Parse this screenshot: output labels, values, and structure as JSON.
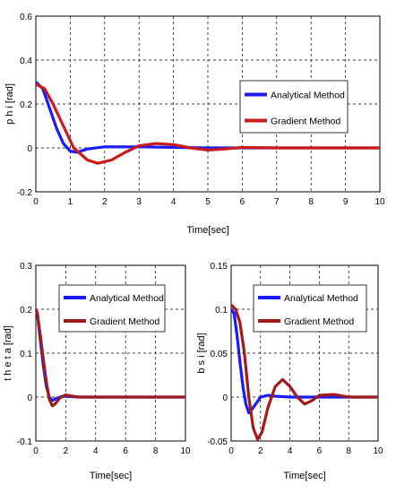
{
  "chart_data": [
    {
      "type": "line",
      "xlabel": "Time[sec]",
      "ylabel": "p h i [rad]",
      "xlim": [
        0,
        10
      ],
      "ylim": [
        -0.2,
        0.6
      ],
      "xticks": [
        "0",
        "1",
        "2",
        "3",
        "4",
        "5",
        "6",
        "7",
        "8",
        "9",
        "10"
      ],
      "yticks": [
        "-0.2",
        "0",
        "0.2",
        "0.4",
        "0.6"
      ],
      "grid": true,
      "legend": "right-middle",
      "series": [
        {
          "name": "Analytical Method",
          "color": "#1a1aff",
          "x": [
            0,
            0.2,
            0.4,
            0.6,
            0.8,
            1.0,
            1.2,
            1.5,
            2.0,
            3.0,
            5.0,
            10.0
          ],
          "y": [
            0.3,
            0.27,
            0.18,
            0.09,
            0.02,
            -0.015,
            -0.02,
            -0.005,
            0.005,
            0.005,
            0.0,
            0.0
          ]
        },
        {
          "name": "Gradient Method",
          "color": "#cc1a1a",
          "x": [
            0,
            0.25,
            0.5,
            0.8,
            1.1,
            1.5,
            1.8,
            2.2,
            2.6,
            3.0,
            3.5,
            4.0,
            4.5,
            5.0,
            5.5,
            6.0,
            7.0,
            10.0
          ],
          "y": [
            0.29,
            0.27,
            0.2,
            0.1,
            0.0,
            -0.055,
            -0.07,
            -0.055,
            -0.02,
            0.01,
            0.02,
            0.015,
            0.0,
            -0.01,
            -0.005,
            0.002,
            0.0,
            0.0
          ]
        }
      ]
    },
    {
      "type": "line",
      "xlabel": "Time[sec]",
      "ylabel": "t h e t a [rad]",
      "xlim": [
        0,
        10
      ],
      "ylim": [
        -0.1,
        0.3
      ],
      "xticks": [
        "0",
        "2",
        "4",
        "6",
        "8",
        "10"
      ],
      "yticks": [
        "-0.1",
        "0",
        "0.1",
        "0.2",
        "0.3"
      ],
      "grid": true,
      "legend": "top-right",
      "series": [
        {
          "name": "Analytical Method",
          "color": "#1a1aff",
          "x": [
            0,
            0.1,
            0.3,
            0.5,
            0.7,
            0.9,
            1.1,
            1.3,
            1.8,
            3,
            10
          ],
          "y": [
            0.2,
            0.19,
            0.13,
            0.07,
            0.025,
            0.0,
            -0.008,
            -0.004,
            0.002,
            0.0,
            0.0
          ]
        },
        {
          "name": "Gradient Method",
          "color": "#a01a1a",
          "x": [
            0,
            0.1,
            0.3,
            0.5,
            0.7,
            0.9,
            1.1,
            1.3,
            1.6,
            2.0,
            2.3,
            2.8,
            4,
            10
          ],
          "y": [
            0.2,
            0.19,
            0.14,
            0.085,
            0.035,
            -0.005,
            -0.02,
            -0.015,
            -0.002,
            0.005,
            0.003,
            0.0,
            0.0,
            0.0
          ]
        }
      ]
    },
    {
      "type": "line",
      "xlabel": "Time[sec]",
      "ylabel": "b s i [rad]",
      "xlim": [
        0,
        10
      ],
      "ylim": [
        -0.05,
        0.15
      ],
      "xticks": [
        "0",
        "2",
        "4",
        "6",
        "8",
        "10"
      ],
      "yticks": [
        "-0.05",
        "0",
        "0.05",
        "0.1",
        "0.15"
      ],
      "grid": true,
      "legend": "top-right",
      "series": [
        {
          "name": "Analytical Method",
          "color": "#1a1aff",
          "x": [
            0,
            0.2,
            0.4,
            0.6,
            0.8,
            1.0,
            1.2,
            1.5,
            2.0,
            2.5,
            3.0,
            4.0,
            10
          ],
          "y": [
            0.1,
            0.095,
            0.07,
            0.04,
            0.012,
            -0.008,
            -0.018,
            -0.012,
            0.0,
            0.002,
            0.001,
            0.0,
            0.0
          ]
        },
        {
          "name": "Gradient Method",
          "color": "#a01a1a",
          "x": [
            0,
            0.3,
            0.6,
            0.9,
            1.2,
            1.5,
            1.8,
            2.1,
            2.5,
            3.0,
            3.5,
            4.0,
            4.5,
            5.0,
            5.5,
            6.0,
            7.0,
            8.0,
            10
          ],
          "y": [
            0.105,
            0.1,
            0.085,
            0.05,
            0.0,
            -0.035,
            -0.048,
            -0.04,
            -0.012,
            0.012,
            0.02,
            0.012,
            0.0,
            -0.008,
            -0.004,
            0.002,
            0.003,
            0.0,
            0.0
          ]
        }
      ]
    }
  ]
}
